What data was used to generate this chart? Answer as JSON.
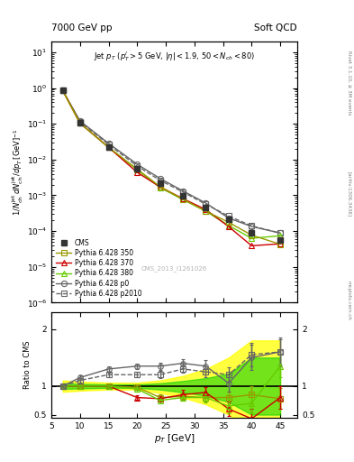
{
  "title_left": "7000 GeV pp",
  "title_right": "Soft QCD",
  "watermark": "CMS_2013_I1261026",
  "annotation": "Jet $p_T$ ($p_T^l>5$ GeV, $|\\eta|<1.9$, $50<N_{ch}<80$)",
  "pt_values": [
    7,
    10,
    15,
    20,
    24,
    28,
    32,
    36,
    40,
    45
  ],
  "cms_y": [
    0.85,
    0.105,
    0.022,
    0.0055,
    0.0022,
    0.00095,
    0.00045,
    0.00022,
    9e-05,
    5.5e-05
  ],
  "cms_yerr": [
    0.04,
    0.006,
    0.0015,
    0.0004,
    0.00015,
    7e-05,
    3e-05,
    1.5e-05,
    6e-06,
    4e-06
  ],
  "p350_y": [
    0.85,
    0.105,
    0.022,
    0.0054,
    0.00176,
    0.00078,
    0.00036,
    0.000176,
    7.7e-05,
    4.3e-05
  ],
  "p370_y": [
    0.85,
    0.105,
    0.022,
    0.0044,
    0.00172,
    0.00081,
    0.0004,
    0.000133,
    3.9e-05,
    4.4e-05
  ],
  "p380_y": [
    0.85,
    0.105,
    0.022,
    0.0052,
    0.00165,
    0.00076,
    0.00036,
    0.000143,
    6.3e-05,
    7.4e-05
  ],
  "pp0_y": [
    0.85,
    0.121,
    0.0285,
    0.00742,
    0.00297,
    0.00133,
    0.000608,
    0.000231,
    0.000135,
    8.8e-05
  ],
  "pp2010_y": [
    0.85,
    0.116,
    0.0264,
    0.0066,
    0.00264,
    0.00124,
    0.000563,
    0.000264,
    0.00014,
    8.8e-05
  ],
  "p350_ratio": [
    1.0,
    1.0,
    1.0,
    0.98,
    0.8,
    0.82,
    0.8,
    0.8,
    0.85,
    0.78
  ],
  "p370_ratio": [
    1.0,
    1.0,
    1.0,
    0.8,
    0.78,
    0.85,
    0.89,
    0.6,
    0.43,
    0.8
  ],
  "p380_ratio": [
    1.0,
    1.0,
    1.0,
    0.95,
    0.75,
    0.8,
    0.8,
    0.65,
    0.7,
    1.35
  ],
  "pp0_ratio": [
    1.0,
    1.15,
    1.3,
    1.35,
    1.35,
    1.4,
    1.35,
    1.05,
    1.5,
    1.6
  ],
  "pp2010_ratio": [
    1.0,
    1.1,
    1.2,
    1.2,
    1.2,
    1.3,
    1.25,
    1.2,
    1.55,
    1.6
  ],
  "p350_rerr": [
    0.02,
    0.03,
    0.03,
    0.04,
    0.05,
    0.06,
    0.07,
    0.1,
    0.15,
    0.18
  ],
  "p370_rerr": [
    0.02,
    0.03,
    0.03,
    0.04,
    0.05,
    0.08,
    0.1,
    0.13,
    0.18,
    0.2
  ],
  "p380_rerr": [
    0.02,
    0.03,
    0.03,
    0.04,
    0.05,
    0.06,
    0.08,
    0.12,
    0.18,
    0.2
  ],
  "pp0_rerr": [
    0.02,
    0.04,
    0.05,
    0.05,
    0.06,
    0.08,
    0.1,
    0.15,
    0.22,
    0.25
  ],
  "pp2010_rerr": [
    0.02,
    0.04,
    0.04,
    0.05,
    0.06,
    0.07,
    0.09,
    0.13,
    0.2,
    0.22
  ],
  "yellow_up": [
    1.1,
    1.08,
    1.06,
    1.06,
    1.1,
    1.18,
    1.3,
    1.5,
    1.8,
    1.8
  ],
  "yellow_dn": [
    0.9,
    0.92,
    0.94,
    0.94,
    0.88,
    0.8,
    0.68,
    0.5,
    0.2,
    0.2
  ],
  "green_up": [
    1.05,
    1.04,
    1.03,
    1.03,
    1.05,
    1.09,
    1.14,
    1.22,
    1.5,
    1.5
  ],
  "green_dn": [
    0.95,
    0.96,
    0.97,
    0.97,
    0.94,
    0.89,
    0.83,
    0.72,
    0.5,
    0.5
  ],
  "color_cms": "#333333",
  "color_350": "#999900",
  "color_370": "#cc0000",
  "color_380": "#66cc00",
  "color_p0": "#666666",
  "color_p2010": "#666666",
  "band_yellow": "#ffff00",
  "band_green": "#00cc00",
  "ylim_main": [
    1e-06,
    20
  ],
  "ylim_ratio": [
    0.44,
    2.3
  ],
  "xlim": [
    5,
    48
  ]
}
